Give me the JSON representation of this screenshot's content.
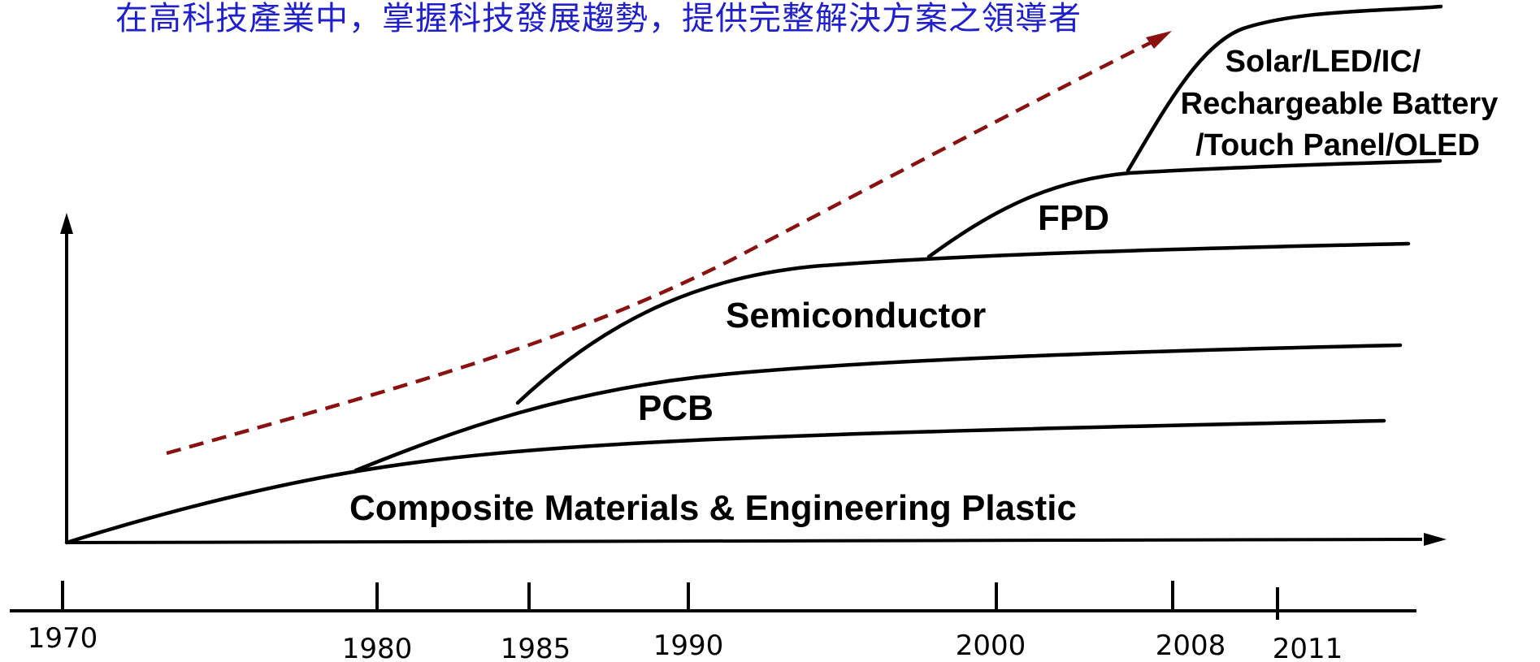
{
  "headline": "在高科技產業中，掌握科技發展趨勢，提供完整解決方案之領導者",
  "colors": {
    "headline": "#1f1fcc",
    "trend_arrow": "#8b1010",
    "lines": "#000000"
  },
  "stages": {
    "composite": "Composite Materials & Engineering Plastic",
    "pcb": "PCB",
    "semiconductor": "Semiconductor",
    "fpd": "FPD",
    "newtech": [
      "Solar/LED/IC/",
      "Rechargeable Battery",
      "/Touch Panel/OLED"
    ]
  },
  "timeline": {
    "years": [
      "1970",
      "1980",
      "1985",
      "1990",
      "2000",
      "2008",
      "2011"
    ]
  }
}
